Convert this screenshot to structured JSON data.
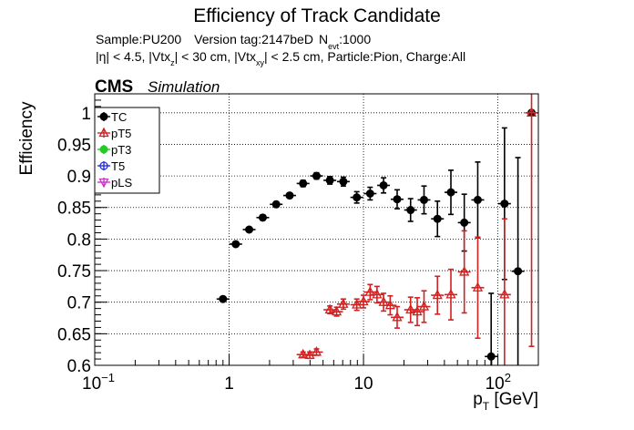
{
  "chart_data": {
    "type": "scatter",
    "title": "Efficiency of Track Candidate",
    "subtitle_line1": {
      "sample": "Sample:PU200",
      "version": "Version tag:2147beD",
      "nevt_main": "N",
      "nevt_sub": "evt",
      "nevt_value": ":1000"
    },
    "subtitle_line2": {
      "a": "|η| < 4.5, |Vtx",
      "a_sub": "z",
      "b": "| < 30 cm, |Vtx",
      "b_sub": "xy",
      "c": "| < 2.5 cm, Particle:Pion, Charge:All"
    },
    "cms_label": "CMS",
    "simulation_label": "Simulation",
    "ylabel": "Efficiency",
    "xlabel": {
      "main": "p",
      "sub": "T",
      "unit": " [GeV]"
    },
    "x_scale": "log",
    "xlim": [
      0.1,
      200
    ],
    "ylim": [
      0.6,
      1.03
    ],
    "grid": true,
    "legend_placement": "top-left",
    "x_ticks": [
      {
        "value": 0.1,
        "base": "10",
        "exp": "−1"
      },
      {
        "value": 1,
        "label": "1"
      },
      {
        "value": 10,
        "label": "10"
      },
      {
        "value": 100,
        "base": "10",
        "exp": "2"
      }
    ],
    "y_ticks": [
      {
        "value": 0.6,
        "label": "0.6"
      },
      {
        "value": 0.65,
        "label": "0.65"
      },
      {
        "value": 0.7,
        "label": "0.7"
      },
      {
        "value": 0.75,
        "label": "0.75"
      },
      {
        "value": 0.8,
        "label": "0.8"
      },
      {
        "value": 0.85,
        "label": "0.85"
      },
      {
        "value": 0.9,
        "label": "0.9"
      },
      {
        "value": 0.95,
        "label": "0.95"
      },
      {
        "value": 1.0,
        "label": "1"
      }
    ],
    "series": [
      {
        "name": "TC",
        "color": "#000000",
        "marker": "filled-circle",
        "points": [
          {
            "x": 0.9,
            "y": 0.705,
            "err": 0.002
          },
          {
            "x": 1.12,
            "y": 0.792,
            "err": 0.003
          },
          {
            "x": 1.41,
            "y": 0.815,
            "err": 0.003
          },
          {
            "x": 1.78,
            "y": 0.834,
            "err": 0.004
          },
          {
            "x": 2.24,
            "y": 0.855,
            "err": 0.004
          },
          {
            "x": 2.82,
            "y": 0.869,
            "err": 0.004
          },
          {
            "x": 3.55,
            "y": 0.888,
            "err": 0.005
          },
          {
            "x": 4.47,
            "y": 0.9,
            "err": 0.005
          },
          {
            "x": 5.62,
            "y": 0.893,
            "err": 0.006
          },
          {
            "x": 7.08,
            "y": 0.891,
            "err": 0.007
          },
          {
            "x": 8.91,
            "y": 0.866,
            "err": 0.009
          },
          {
            "x": 11.2,
            "y": 0.872,
            "err": 0.01
          },
          {
            "x": 14.1,
            "y": 0.885,
            "err": 0.012
          },
          {
            "x": 17.8,
            "y": 0.863,
            "err": 0.015
          },
          {
            "x": 22.4,
            "y": 0.846,
            "err": 0.018
          },
          {
            "x": 28.2,
            "y": 0.862,
            "err": 0.022
          },
          {
            "x": 35.5,
            "y": 0.832,
            "err": 0.028
          },
          {
            "x": 44.7,
            "y": 0.874,
            "err": 0.035
          },
          {
            "x": 56.2,
            "y": 0.826,
            "err": 0.045
          },
          {
            "x": 70.8,
            "y": 0.862,
            "err": 0.06
          },
          {
            "x": 89.1,
            "y": 0.614,
            "err": 0.1
          },
          {
            "x": 112,
            "y": 0.856,
            "err": 0.12
          },
          {
            "x": 141,
            "y": 0.749,
            "err": 0.18
          },
          {
            "x": 178,
            "y": 1.0,
            "err": 0.0
          }
        ]
      },
      {
        "name": "pT5",
        "color": "#d42020",
        "marker": "open-triangle",
        "points": [
          {
            "x": 3.55,
            "y": 0.617,
            "err": 0.004
          },
          {
            "x": 3.98,
            "y": 0.616,
            "err": 0.005
          },
          {
            "x": 4.47,
            "y": 0.621,
            "err": 0.005
          },
          {
            "x": 5.62,
            "y": 0.688,
            "err": 0.006
          },
          {
            "x": 6.31,
            "y": 0.685,
            "err": 0.007
          },
          {
            "x": 7.08,
            "y": 0.697,
            "err": 0.008
          },
          {
            "x": 8.91,
            "y": 0.696,
            "err": 0.009
          },
          {
            "x": 10.0,
            "y": 0.701,
            "err": 0.01
          },
          {
            "x": 11.2,
            "y": 0.716,
            "err": 0.012
          },
          {
            "x": 12.6,
            "y": 0.712,
            "err": 0.013
          },
          {
            "x": 14.1,
            "y": 0.7,
            "err": 0.014
          },
          {
            "x": 15.8,
            "y": 0.695,
            "err": 0.015
          },
          {
            "x": 17.8,
            "y": 0.676,
            "err": 0.017
          },
          {
            "x": 22.4,
            "y": 0.688,
            "err": 0.02
          },
          {
            "x": 25.1,
            "y": 0.685,
            "err": 0.022
          },
          {
            "x": 28.2,
            "y": 0.693,
            "err": 0.025
          },
          {
            "x": 35.5,
            "y": 0.711,
            "err": 0.03
          },
          {
            "x": 44.7,
            "y": 0.712,
            "err": 0.04
          },
          {
            "x": 56.2,
            "y": 0.748,
            "err": 0.065
          },
          {
            "x": 70.8,
            "y": 0.723,
            "err": 0.08
          },
          {
            "x": 112,
            "y": 0.712,
            "err": 0.12
          },
          {
            "x": 178,
            "y": 1.0,
            "err": 0.37
          }
        ]
      },
      {
        "name": "pT3",
        "color": "#22cc22",
        "marker": "filled-circle",
        "points": []
      },
      {
        "name": "T5",
        "color": "#2233dd",
        "marker": "open-circle",
        "points": []
      },
      {
        "name": "pLS",
        "color": "#cc33cc",
        "marker": "open-triangle-down",
        "points": []
      }
    ]
  }
}
